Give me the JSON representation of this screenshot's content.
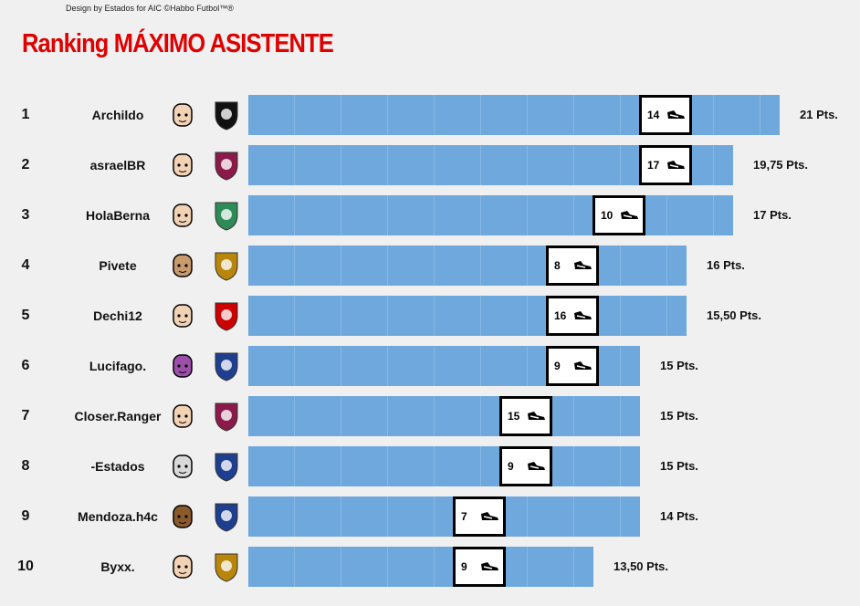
{
  "header": {
    "credit": "Design by Estados for AIC ©Habbo Futbol™®",
    "title": "Ranking MÁXIMO ASISTENTE"
  },
  "rows": [
    {
      "rank": 1,
      "name": "Archildo",
      "assists": 14,
      "points": "21 Pts."
    },
    {
      "rank": 2,
      "name": "asraelBR",
      "assists": 17,
      "points": "19,75 Pts."
    },
    {
      "rank": 3,
      "name": "HolaBerna",
      "assists": 10,
      "points": "17 Pts."
    },
    {
      "rank": 4,
      "name": "Pivete",
      "assists": 8,
      "points": "16 Pts."
    },
    {
      "rank": 5,
      "name": "Dechi12",
      "assists": 16,
      "points": "15,50 Pts."
    },
    {
      "rank": 6,
      "name": "Lucifago.",
      "assists": 9,
      "points": "15 Pts."
    },
    {
      "rank": 7,
      "name": "Closer.Ranger",
      "assists": 15,
      "points": "15 Pts."
    },
    {
      "rank": 8,
      "name": "-Estados",
      "assists": 9,
      "points": "15 Pts."
    },
    {
      "rank": 9,
      "name": "Mendoza.h4c",
      "assists": 7,
      "points": "14 Pts."
    },
    {
      "rank": 10,
      "name": "Byxx.",
      "assists": 9,
      "points": "13,50 Pts."
    }
  ]
}
